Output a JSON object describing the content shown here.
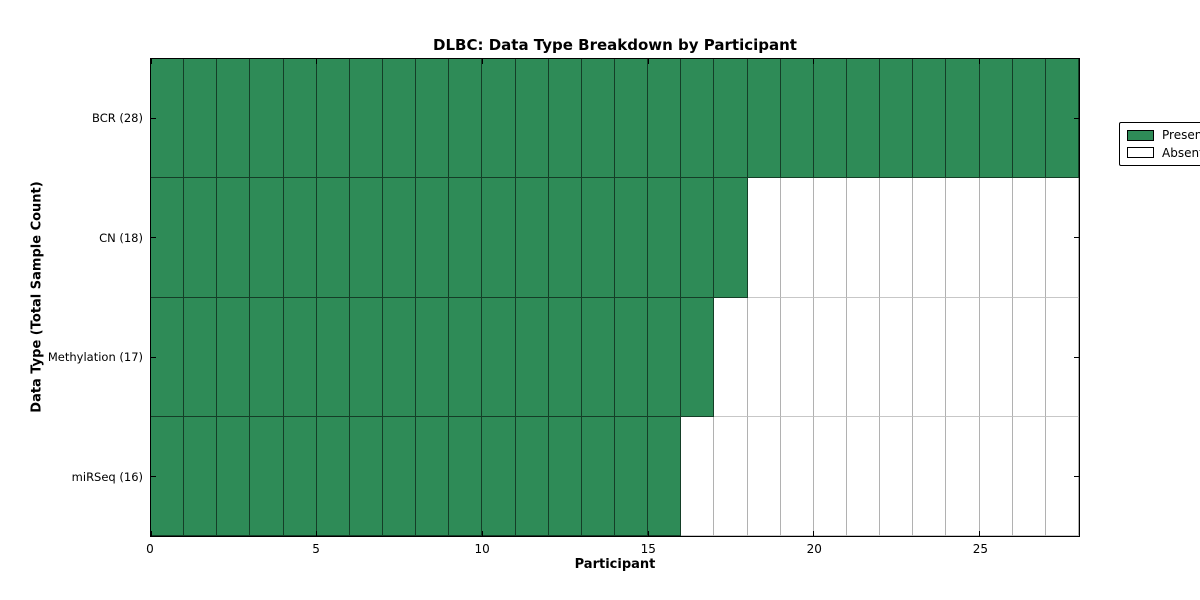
{
  "chart_data": {
    "type": "heatmap",
    "title": "DLBC: Data Type Breakdown by Participant",
    "xlabel": "Participant",
    "ylabel": "Data Type (Total Sample Count)",
    "n_participants": 28,
    "x_range": [
      0,
      28
    ],
    "x_ticks": [
      0,
      5,
      10,
      15,
      20,
      25
    ],
    "rows": [
      {
        "label": "BCR (28)",
        "data_type": "BCR",
        "total_sample_count": 28,
        "present_count": 28,
        "absent_count": 0
      },
      {
        "label": "CN (18)",
        "data_type": "CN",
        "total_sample_count": 18,
        "present_count": 18,
        "absent_count": 10
      },
      {
        "label": "Methylation (17)",
        "data_type": "Methylation",
        "total_sample_count": 17,
        "present_count": 17,
        "absent_count": 11
      },
      {
        "label": "miRSeq (16)",
        "data_type": "miRSeq",
        "total_sample_count": 16,
        "present_count": 16,
        "absent_count": 12
      }
    ],
    "legend": [
      {
        "label": "Present",
        "color": "#2E8B57"
      },
      {
        "label": "Absent",
        "color": "#FFFFFF"
      }
    ],
    "legend_position": "upper right",
    "colors": {
      "present": "#2E8B57",
      "absent": "#FFFFFF",
      "frame": "#000000"
    },
    "grid": true
  }
}
